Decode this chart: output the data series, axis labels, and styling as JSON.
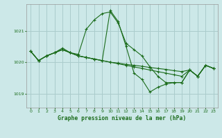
{
  "background_color": "#cce8e8",
  "grid_color": "#aacccc",
  "line_color": "#1a6b1a",
  "title": "Graphe pression niveau de la mer (hPa)",
  "ylim": [
    1018.55,
    1021.85
  ],
  "xlim": [
    -0.5,
    23.5
  ],
  "yticks": [
    1019,
    1020,
    1021
  ],
  "xticks": [
    0,
    1,
    2,
    3,
    4,
    5,
    6,
    7,
    8,
    9,
    10,
    11,
    12,
    13,
    14,
    15,
    16,
    17,
    18,
    19,
    20,
    21,
    22,
    23
  ],
  "series": [
    [
      1020.35,
      1020.05,
      1020.2,
      1020.3,
      1020.45,
      1020.3,
      1020.25,
      1021.05,
      1021.35,
      1021.55,
      1021.6,
      1021.25,
      1020.6,
      1020.4,
      1020.2,
      1019.85,
      1019.55,
      1019.35,
      1019.35,
      1019.35,
      1019.75,
      1019.55,
      1019.9,
      1019.8
    ],
    [
      1020.35,
      1020.05,
      1020.2,
      1020.3,
      1020.4,
      1020.3,
      1020.2,
      1020.15,
      1020.1,
      1020.05,
      1021.65,
      1021.3,
      1020.5,
      1019.65,
      1019.45,
      1019.05,
      1019.2,
      1019.3,
      1019.35,
      1019.35,
      1019.75,
      1019.55,
      1019.9,
      1019.8
    ],
    [
      1020.35,
      1020.05,
      1020.2,
      1020.3,
      1020.4,
      1020.3,
      1020.2,
      1020.15,
      1020.1,
      1020.05,
      1020.0,
      1019.95,
      1019.9,
      1019.85,
      1019.8,
      1019.75,
      1019.7,
      1019.65,
      1019.6,
      1019.55,
      1019.75,
      1019.55,
      1019.9,
      1019.8
    ],
    [
      1020.35,
      1020.05,
      1020.2,
      1020.3,
      1020.4,
      1020.3,
      1020.2,
      1020.15,
      1020.1,
      1020.05,
      1020.0,
      1019.97,
      1019.93,
      1019.9,
      1019.87,
      1019.83,
      1019.8,
      1019.77,
      1019.73,
      1019.7,
      1019.75,
      1019.55,
      1019.9,
      1019.8
    ]
  ]
}
